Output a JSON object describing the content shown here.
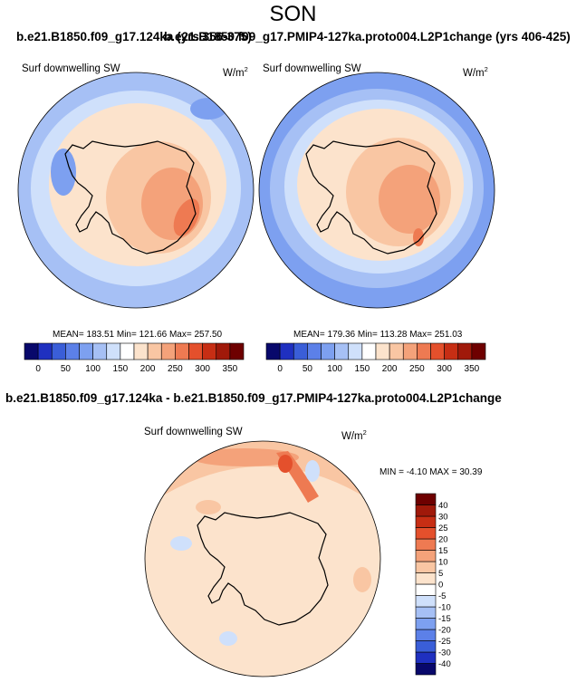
{
  "season": "SON",
  "panels": [
    {
      "title": "b.e21.B1850.f09_g17.124ka (yrs 356-375)",
      "variable": "Surf downwelling SW",
      "units_base": "W/m",
      "units_exp": "2",
      "stats": "MEAN= 183.51  Min= 121.66  Max= 257.50"
    },
    {
      "title": "b.e21.B1850.f09_g17.PMIP4-127ka.proto004.L2P1change (yrs 406-425)",
      "variable": "Surf downwelling SW",
      "units_base": "W/m",
      "units_exp": "2",
      "stats": "MEAN= 179.36  Min= 113.28  Max= 251.03"
    },
    {
      "title": "b.e21.B1850.f09_g17.124ka - b.e21.B1850.f09_g17.PMIP4-127ka.proto004.L2P1change",
      "variable": "Surf downwelling SW",
      "units_base": "W/m",
      "units_exp": "2",
      "stats": "MIN =  -4.10 MAX =  30.39"
    }
  ],
  "chart_data": [
    {
      "type": "heatmap",
      "title": "b.e21.B1850.f09_g17.124ka (yrs 356-375)",
      "variable": "Surf downwelling SW",
      "units": "W/m2",
      "projection": "south polar stereographic",
      "mean": 183.51,
      "min": 121.66,
      "max": 257.5,
      "colorbar": {
        "orientation": "horizontal",
        "levels": [
          0,
          25,
          50,
          75,
          100,
          125,
          150,
          175,
          200,
          225,
          250,
          275,
          300,
          325,
          350
        ],
        "tick_labels": [
          "0",
          "50",
          "100",
          "150",
          "200",
          "250",
          "300",
          "350"
        ],
        "colors": [
          "#08086b",
          "#1f30c0",
          "#3a5ed8",
          "#5c80e8",
          "#7da0f0",
          "#a6c0f5",
          "#cfe0fb",
          "#ffffff",
          "#fce3cc",
          "#f9c6a3",
          "#f4a27a",
          "#ee7a52",
          "#e4502c",
          "#c72e14",
          "#a0190a",
          "#6e0000"
        ]
      },
      "regions": [
        {
          "name": "outer ocean ring",
          "level": "125-150"
        },
        {
          "name": "ice-edge band",
          "level": "150-175"
        },
        {
          "name": "coastal seas",
          "level": "175-200"
        },
        {
          "name": "antarctic continent",
          "level": "200-225"
        },
        {
          "name": "east antarctic plateau",
          "level": "225-250"
        },
        {
          "name": "plateau maximum",
          "level": "250-275"
        }
      ]
    },
    {
      "type": "heatmap",
      "title": "b.e21.B1850.f09_g17.PMIP4-127ka.proto004.L2P1change (yrs 406-425)",
      "variable": "Surf downwelling SW",
      "units": "W/m2",
      "projection": "south polar stereographic",
      "mean": 179.36,
      "min": 113.28,
      "max": 251.03,
      "colorbar": {
        "orientation": "horizontal",
        "levels": [
          0,
          25,
          50,
          75,
          100,
          125,
          150,
          175,
          200,
          225,
          250,
          275,
          300,
          325,
          350
        ],
        "tick_labels": [
          "0",
          "50",
          "100",
          "150",
          "200",
          "250",
          "300",
          "350"
        ],
        "colors": [
          "#08086b",
          "#1f30c0",
          "#3a5ed8",
          "#5c80e8",
          "#7da0f0",
          "#a6c0f5",
          "#cfe0fb",
          "#ffffff",
          "#fce3cc",
          "#f9c6a3",
          "#f4a27a",
          "#ee7a52",
          "#e4502c",
          "#c72e14",
          "#a0190a",
          "#6e0000"
        ]
      },
      "regions": [
        {
          "name": "outer ocean ring",
          "level": "100-125"
        },
        {
          "name": "ice-edge band",
          "level": "150-175"
        },
        {
          "name": "coastal seas",
          "level": "175-200"
        },
        {
          "name": "antarctic continent",
          "level": "200-225"
        },
        {
          "name": "east antarctic plateau",
          "level": "225-250"
        },
        {
          "name": "plateau maximum",
          "level": "250-275"
        }
      ]
    },
    {
      "type": "heatmap",
      "title": "b.e21.B1850.f09_g17.124ka - b.e21.B1850.f09_g17.PMIP4-127ka.proto004.L2P1change",
      "variable": "Surf downwelling SW",
      "units": "W/m2",
      "projection": "south polar stereographic",
      "min": -4.1,
      "max": 30.39,
      "colorbar": {
        "orientation": "vertical",
        "levels": [
          -40,
          -30,
          -25,
          -20,
          -15,
          -10,
          -5,
          0,
          5,
          10,
          15,
          20,
          25,
          30,
          40
        ],
        "tick_labels": [
          "-40",
          "-30",
          "-25",
          "-20",
          "-15",
          "-10",
          "-5",
          "0",
          "5",
          "10",
          "15",
          "20",
          "25",
          "30",
          "40"
        ],
        "colors": [
          "#08086b",
          "#1f30c0",
          "#3a5ed8",
          "#5c80e8",
          "#7da0f0",
          "#a6c0f5",
          "#cfe0fb",
          "#ffffff",
          "#fce3cc",
          "#f9c6a3",
          "#f4a27a",
          "#ee7a52",
          "#e4502c",
          "#c72e14",
          "#a0190a",
          "#6e0000"
        ]
      },
      "regions": [
        {
          "name": "background (most of domain)",
          "level": "0-5"
        },
        {
          "name": "scattered negative patches",
          "level": "-5-0"
        },
        {
          "name": "positive patches",
          "level": "5-10"
        },
        {
          "name": "northern band",
          "level": "10-15"
        },
        {
          "name": "northern band core",
          "level": "15-20"
        },
        {
          "name": "local maximum",
          "level": "20-30"
        }
      ]
    }
  ]
}
